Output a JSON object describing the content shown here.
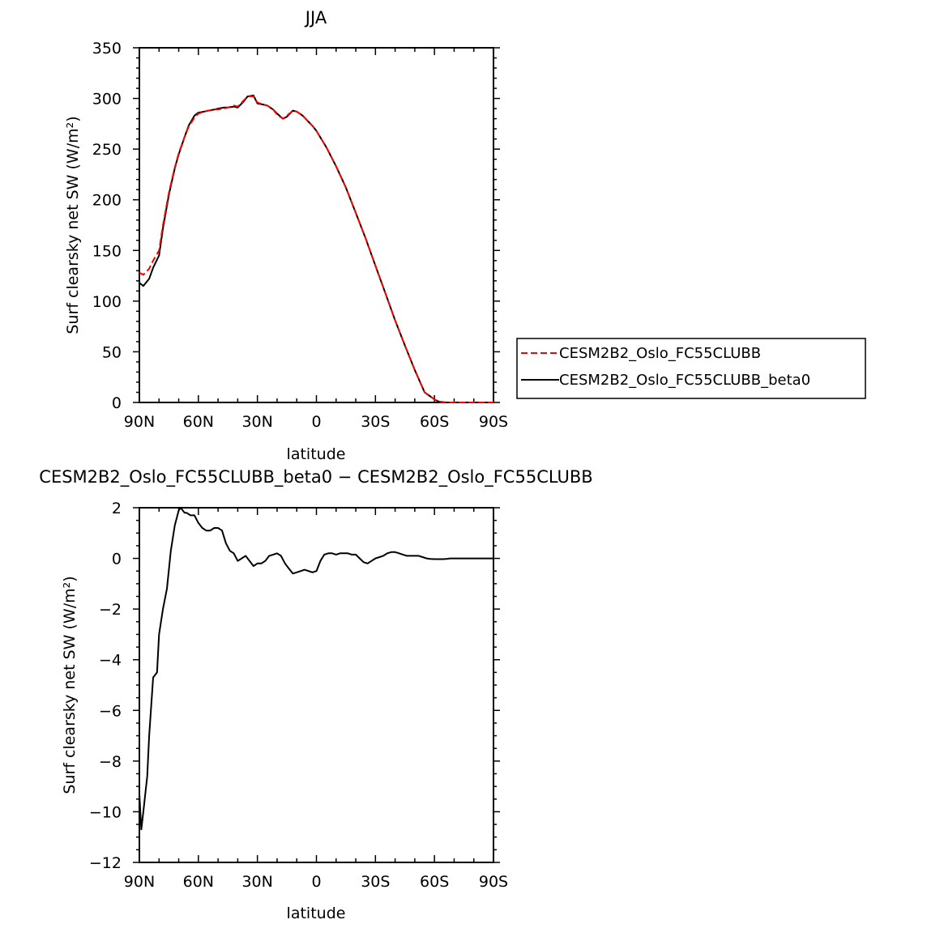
{
  "chart_data": [
    {
      "type": "line",
      "title": "JJA",
      "xlabel": "latitude",
      "ylabel": "Surf clearsky net SW (W/m²)",
      "xlim": [
        90,
        -90
      ],
      "ylim": [
        0,
        350
      ],
      "xticks": [
        90,
        60,
        30,
        0,
        -30,
        -60,
        -90
      ],
      "xtick_labels": [
        "90N",
        "60N",
        "30N",
        "0",
        "30S",
        "60S",
        "90S"
      ],
      "yticks": [
        0,
        50,
        100,
        150,
        200,
        250,
        300,
        350
      ],
      "ytick_labels": [
        "0",
        "50",
        "100",
        "150",
        "200",
        "250",
        "300",
        "350"
      ],
      "grid": false,
      "legend_position": "right",
      "series": [
        {
          "name": "CESM2B2_Oslo_FC55CLUBB",
          "color": "#ff0000",
          "dash": "dashed",
          "x": [
            90,
            88,
            85,
            83,
            80,
            78,
            75,
            72,
            70,
            67,
            65,
            62,
            60,
            57,
            55,
            52,
            50,
            47,
            45,
            42,
            40,
            37,
            35,
            32,
            30,
            27,
            25,
            22,
            20,
            17,
            15,
            12,
            10,
            7,
            5,
            2,
            0,
            -5,
            -10,
            -15,
            -20,
            -25,
            -30,
            -35,
            -40,
            -45,
            -50,
            -55,
            -60,
            -62,
            -64,
            -66,
            -68,
            -70,
            -75,
            -80,
            -85,
            -90
          ],
          "y": [
            128,
            126,
            132,
            140,
            150,
            175,
            207,
            232,
            246,
            262,
            272,
            281,
            285,
            287,
            288,
            289,
            289,
            290,
            291,
            293,
            292,
            298,
            302,
            302,
            296,
            294,
            293,
            289,
            284,
            280,
            283,
            288,
            287,
            283,
            279,
            273,
            268,
            252,
            233,
            212,
            187,
            162,
            135,
            108,
            81,
            56,
            32,
            10,
            3,
            1,
            0.5,
            0,
            0,
            0,
            0,
            0,
            0,
            0
          ]
        },
        {
          "name": "CESM2B2_Oslo_FC55CLUBB_beta0",
          "color": "#000000",
          "dash": "solid",
          "x": [
            90,
            88,
            85,
            83,
            80,
            78,
            75,
            72,
            70,
            67,
            65,
            62,
            60,
            57,
            55,
            52,
            50,
            47,
            45,
            42,
            40,
            37,
            35,
            32,
            30,
            27,
            25,
            22,
            20,
            17,
            15,
            12,
            10,
            7,
            5,
            2,
            0,
            -5,
            -10,
            -15,
            -20,
            -25,
            -30,
            -35,
            -40,
            -45,
            -50,
            -55,
            -60,
            -62,
            -64,
            -66,
            -68,
            -70,
            -75,
            -80,
            -85,
            -90
          ],
          "y": [
            118,
            115,
            122,
            133,
            145,
            172,
            205,
            231,
            245,
            262,
            273,
            283,
            286,
            287,
            288,
            289,
            290,
            291,
            291,
            292,
            291,
            297,
            302,
            303,
            295,
            294,
            293,
            289,
            285,
            280,
            282,
            288,
            287,
            283,
            279,
            273,
            268,
            252,
            233,
            212,
            187,
            162,
            135,
            108,
            81,
            56,
            32,
            10,
            3,
            1,
            0.5,
            0,
            0,
            0,
            0,
            0,
            0,
            0
          ]
        }
      ]
    },
    {
      "type": "line",
      "title": "CESM2B2_Oslo_FC55CLUBB_beta0 − CESM2B2_Oslo_FC55CLUBB",
      "xlabel": "latitude",
      "ylabel": "Surf clearsky net SW (W/m²)",
      "xlim": [
        90,
        -90
      ],
      "ylim": [
        -12,
        2
      ],
      "xticks": [
        90,
        60,
        30,
        0,
        -30,
        -60,
        -90
      ],
      "xtick_labels": [
        "90N",
        "60N",
        "30N",
        "0",
        "30S",
        "60S",
        "90S"
      ],
      "yticks": [
        -12,
        -10,
        -8,
        -6,
        -4,
        -2,
        0,
        2
      ],
      "ytick_labels": [
        "−12",
        "−10",
        "−8",
        "−6",
        "−4",
        "−2",
        "0",
        "2"
      ],
      "grid": false,
      "series": [
        {
          "color": "#000000",
          "dash": "solid",
          "x": [
            90,
            89,
            88,
            87,
            86,
            85,
            83,
            81,
            80,
            78,
            76,
            74,
            72,
            70,
            69,
            67,
            66,
            64,
            62,
            60,
            58,
            56,
            54,
            52,
            50,
            48,
            46,
            44,
            42,
            40,
            38,
            36,
            34,
            32,
            30,
            28,
            26,
            24,
            22,
            20,
            18,
            16,
            14,
            12,
            10,
            8,
            6,
            4,
            2,
            0,
            -2,
            -4,
            -6,
            -8,
            -10,
            -12,
            -14,
            -16,
            -18,
            -20,
            -22,
            -24,
            -26,
            -28,
            -30,
            -32,
            -34,
            -36,
            -38,
            -40,
            -42,
            -44,
            -46,
            -48,
            -50,
            -52,
            -54,
            -56,
            -58,
            -60,
            -62,
            -64,
            -66,
            -68,
            -70,
            -72,
            -74,
            -76,
            -80,
            -85,
            -90
          ],
          "y": [
            -9.3,
            -10.7,
            -10.0,
            -9.3,
            -8.6,
            -7.0,
            -4.7,
            -4.5,
            -3.0,
            -2.0,
            -1.2,
            0.3,
            1.3,
            1.9,
            2.0,
            1.8,
            1.8,
            1.7,
            1.7,
            1.4,
            1.2,
            1.1,
            1.1,
            1.2,
            1.2,
            1.1,
            0.6,
            0.3,
            0.2,
            -0.1,
            0.0,
            0.1,
            -0.1,
            -0.3,
            -0.2,
            -0.2,
            -0.1,
            0.1,
            0.15,
            0.2,
            0.1,
            -0.2,
            -0.4,
            -0.6,
            -0.55,
            -0.5,
            -0.45,
            -0.5,
            -0.55,
            -0.5,
            -0.1,
            0.15,
            0.2,
            0.2,
            0.15,
            0.2,
            0.2,
            0.2,
            0.15,
            0.15,
            0.0,
            -0.15,
            -0.2,
            -0.1,
            0.0,
            0.05,
            0.1,
            0.2,
            0.25,
            0.25,
            0.2,
            0.15,
            0.1,
            0.1,
            0.1,
            0.1,
            0.05,
            0.0,
            -0.02,
            -0.03,
            -0.03,
            -0.03,
            -0.02,
            0.0,
            0.0,
            0.0,
            0.0,
            0.0,
            0.0,
            0.0,
            0.0
          ]
        }
      ]
    }
  ]
}
